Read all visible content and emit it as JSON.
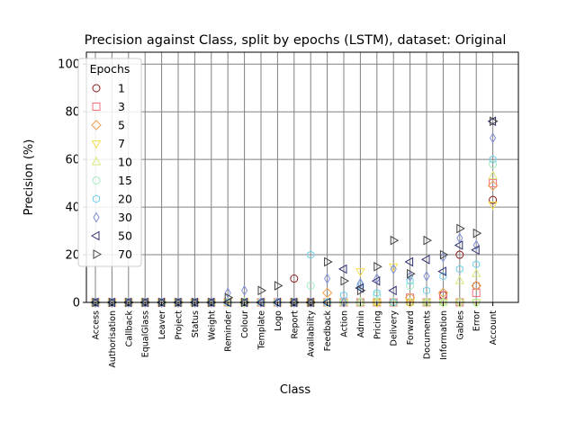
{
  "chart_data": {
    "type": "scatter",
    "title": "Precision against Class, split by epochs (LSTM), dataset: Original",
    "xlabel": "Class",
    "ylabel": "Precision (%)",
    "ylim": [
      0,
      105
    ],
    "yticks": [
      0,
      20,
      40,
      60,
      80,
      100
    ],
    "grid": true,
    "legend": {
      "title": "Epochs",
      "placement": "top-left"
    },
    "categories": [
      "Access",
      "Authorisation",
      "Callback",
      "EqualGlass",
      "Leaver",
      "Project",
      "Status",
      "Weight",
      "Reminder",
      "Colour",
      "Template",
      "Logo",
      "Report",
      "Availability",
      "Feedback",
      "Action",
      "Admin",
      "Pricing",
      "Delivery",
      "Forward",
      "Documents",
      "Information",
      "Gables",
      "Error",
      "Account"
    ],
    "series": [
      {
        "name": "1",
        "marker": "circle",
        "color": "#8b1a1a",
        "values": [
          0,
          0,
          0,
          0,
          0,
          0,
          0,
          0,
          0,
          0,
          0,
          0,
          10,
          0,
          0,
          0,
          0,
          0,
          0,
          0,
          0,
          3,
          20,
          7,
          43
        ]
      },
      {
        "name": "3",
        "marker": "square",
        "color": "#f07080",
        "values": [
          0,
          0,
          0,
          0,
          0,
          0,
          0,
          0,
          0,
          0,
          0,
          0,
          0,
          0,
          0,
          0,
          0,
          0,
          0,
          2,
          0,
          3,
          0,
          4,
          50
        ]
      },
      {
        "name": "5",
        "marker": "diamond",
        "color": "#f0a050",
        "values": [
          0,
          0,
          0,
          0,
          0,
          0,
          0,
          0,
          0,
          0,
          0,
          0,
          0,
          0,
          4,
          0,
          0,
          0,
          0,
          2,
          0,
          4,
          0,
          7,
          49
        ]
      },
      {
        "name": "7",
        "marker": "triangle-down",
        "color": "#f5e050",
        "values": [
          0,
          0,
          0,
          0,
          0,
          0,
          0,
          0,
          0,
          0,
          0,
          0,
          0,
          0,
          0,
          0,
          13,
          0,
          15,
          0,
          0,
          0,
          0,
          0,
          41
        ]
      },
      {
        "name": "10",
        "marker": "triangle-up",
        "color": "#d8e87a",
        "values": [
          0,
          0,
          0,
          0,
          0,
          0,
          0,
          0,
          0,
          0,
          0,
          0,
          0,
          0,
          0,
          0,
          0,
          0,
          0,
          0,
          0,
          0,
          9,
          12,
          53
        ]
      },
      {
        "name": "15",
        "marker": "circle",
        "color": "#a0ecc0",
        "values": [
          0,
          0,
          0,
          0,
          0,
          0,
          0,
          0,
          0,
          0,
          0,
          0,
          0,
          7,
          0,
          0,
          0,
          3,
          0,
          7,
          0,
          0,
          0,
          0,
          58
        ]
      },
      {
        "name": "20",
        "marker": "hexagon",
        "color": "#70d0e8",
        "values": [
          0,
          0,
          0,
          0,
          0,
          0,
          0,
          0,
          0,
          0,
          0,
          0,
          0,
          20,
          0,
          3,
          7,
          4,
          0,
          9,
          5,
          11,
          14,
          16,
          60
        ]
      },
      {
        "name": "30",
        "marker": "thin-diamond",
        "color": "#8090d8",
        "values": [
          0,
          0,
          0,
          0,
          0,
          0,
          0,
          0,
          4,
          5,
          0,
          0,
          0,
          0,
          10,
          0,
          8,
          10,
          14,
          11,
          11,
          19,
          27,
          24,
          69
        ]
      },
      {
        "name": "50",
        "marker": "triangle-left",
        "color": "#303070",
        "values": [
          0,
          0,
          0,
          0,
          0,
          0,
          0,
          0,
          0,
          0,
          0,
          0,
          0,
          0,
          0,
          14,
          6,
          9,
          5,
          17,
          18,
          13,
          24,
          22,
          76
        ]
      },
      {
        "name": "70",
        "marker": "triangle-right",
        "color": "#404040",
        "values": [
          0,
          0,
          0,
          0,
          0,
          0,
          0,
          0,
          2,
          0,
          5,
          7,
          0,
          0,
          17,
          9,
          5,
          15,
          26,
          12,
          26,
          20,
          31,
          29,
          76
        ]
      }
    ]
  }
}
